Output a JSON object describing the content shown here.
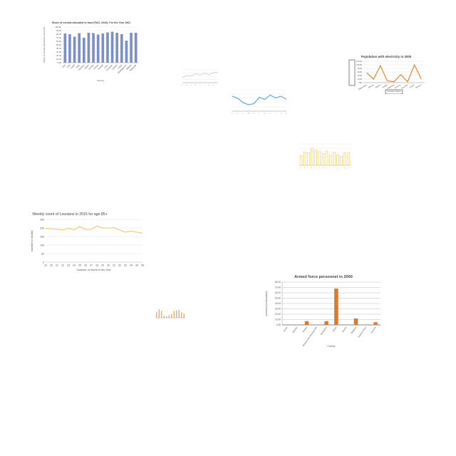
{
  "chart_data": [
    {
      "id": "cereals",
      "type": "bar",
      "title": "Share of cereals allocated to food (FAO, 2020): For the Year 1961",
      "xlabel": "Country",
      "ylabel": "Share of cereals allocated to food (%)",
      "ylim": [
        0,
        100
      ],
      "yticks": [
        "0.00",
        "10.00",
        "20.00",
        "30.00",
        "40.00",
        "50.00",
        "60.00",
        "70.00",
        "80.00",
        "90.00",
        "100.00"
      ],
      "categories": [
        "Iran",
        "Iraq",
        "Israel",
        "Italy",
        "Jamaica",
        "Japan",
        "Jordan",
        "Kenya",
        "Kuwait",
        "Laos",
        "Lebanon",
        "Liberia",
        "Libya",
        "Madagascar",
        "Malawi",
        "Malaysia"
      ],
      "values": [
        82,
        80,
        73,
        83,
        70,
        84,
        83,
        79,
        82,
        85,
        87,
        84,
        80,
        62,
        84,
        84
      ],
      "color": "#7b8fc9"
    },
    {
      "id": "small-line",
      "type": "line",
      "title": "",
      "xlabel": "",
      "ylabel": "",
      "categories": [
        "a",
        "b",
        "c",
        "d",
        "e",
        "f",
        "g",
        "h",
        "i"
      ],
      "values": [
        40,
        55,
        52,
        70,
        60,
        75,
        62,
        80,
        78
      ],
      "ylim": [
        0,
        100
      ],
      "color": "#c8c8c8"
    },
    {
      "id": "electricity",
      "type": "line",
      "title": "Population with electricity in 2000",
      "xlabel": "Country Name",
      "ylabel": "",
      "ylim": [
        0,
        120
      ],
      "yticks": [
        "0.00",
        "20.00",
        "40.00",
        "60.00",
        "80.00",
        "100.00",
        "120.00"
      ],
      "categories": [
        "Afghanistan",
        "Albania",
        "Algeria",
        "Angola",
        "Argentina",
        "Armenia",
        "Australia",
        "Austria",
        "Bahrain"
      ],
      "values": [
        55,
        20,
        95,
        10,
        5,
        45,
        5,
        100,
        20
      ],
      "color": "#e0882a"
    },
    {
      "id": "blue-line",
      "type": "line",
      "title": "",
      "xlabel": "",
      "ylabel": "",
      "categories": [
        "a",
        "b",
        "c",
        "d",
        "e",
        "f",
        "g",
        "h",
        "i",
        "j",
        "k"
      ],
      "values": [
        70,
        60,
        40,
        30,
        35,
        65,
        55,
        75,
        62,
        70,
        55
      ],
      "ylim": [
        0,
        100
      ],
      "color": "#4a9fd6"
    },
    {
      "id": "yellow-bars",
      "type": "bar",
      "title": "",
      "xlabel": "",
      "ylabel": "",
      "categories": [
        "a",
        "b",
        "c",
        "d",
        "e",
        "f",
        "g",
        "h",
        "i",
        "j",
        "k",
        "l",
        "m",
        "n"
      ],
      "values": [
        45,
        62,
        58,
        80,
        72,
        64,
        55,
        66,
        48,
        60,
        50,
        42,
        58,
        60
      ],
      "ylim": [
        0,
        100
      ],
      "color": "#f2d76a"
    },
    {
      "id": "lousianns",
      "type": "line",
      "title": "Weekly count of Lousians in 2015 for age 85+",
      "xlabel": "Number of Week of the Year",
      "ylabel": "number of deaths",
      "ylim": [
        0,
        250
      ],
      "yticks": [
        "0",
        "50",
        "100",
        "150",
        "200",
        "250"
      ],
      "categories": [
        "19",
        "20",
        "21",
        "22",
        "23",
        "24",
        "25",
        "26",
        "27",
        "28",
        "29",
        "30",
        "31",
        "32",
        "33",
        "34",
        "35",
        "36"
      ],
      "values": [
        198,
        195,
        193,
        188,
        198,
        190,
        208,
        192,
        192,
        212,
        200,
        200,
        202,
        188,
        176,
        183,
        175,
        170
      ],
      "color": "#f2c86b"
    },
    {
      "id": "tiny-bars",
      "type": "bar",
      "title": "",
      "xlabel": "",
      "ylabel": "",
      "categories": [
        "a",
        "b",
        "c",
        "d",
        "e",
        "f",
        "g",
        "h",
        "i",
        "j",
        "k",
        "l"
      ],
      "values": [
        60,
        85,
        70,
        20,
        15,
        25,
        40,
        70,
        75,
        80,
        55,
        45
      ],
      "ylim": [
        0,
        100
      ],
      "color": "#e0a060"
    },
    {
      "id": "armed",
      "type": "bar",
      "title": "Armed force personnel in 2000",
      "xlabel": "Country",
      "ylabel": "personnel (in thousands)",
      "ylim": [
        0,
        80
      ],
      "yticks": [
        "0.00",
        "10.00",
        "20.00",
        "30.00",
        "40.00",
        "50.00",
        "60.00",
        "70.00",
        "80.00"
      ],
      "categories": [
        "Benin",
        "Bhutan",
        "Bolivia",
        "Bosnia and Herzegovina",
        "Botswana",
        "Brazil",
        "Brunei",
        "Bulgaria",
        "Burkina Faso",
        "Burundi"
      ],
      "values": [
        0,
        0,
        7,
        0,
        7,
        68,
        0,
        12,
        0,
        5
      ],
      "color": "#e0782a"
    }
  ]
}
